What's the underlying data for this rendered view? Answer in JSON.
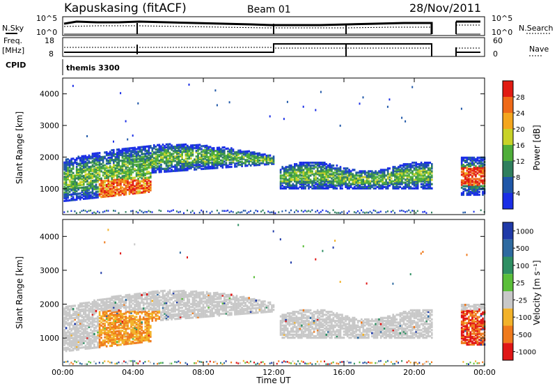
{
  "header": {
    "station": "Kapuskasing (fitACF)",
    "beam": "Beam 01",
    "date": "28/Nov/2011"
  },
  "top_panels": {
    "nsky_label": "N.Sky",
    "nsearch_label": "N.Search",
    "noise_ticks_left": [
      "10^5",
      "10^0"
    ],
    "noise_ticks_right": [
      "10^5",
      "10^0"
    ],
    "freq_label_1": "Freq.",
    "freq_label_2": "[MHz]",
    "freq_ticks": [
      "18",
      "8"
    ],
    "nave_label": "Nave",
    "nave_ticks": [
      "60",
      "0"
    ],
    "cpid_label": "CPID",
    "cpid_value": "themis 3300"
  },
  "axes": {
    "x_ticks": [
      "00:00",
      "04:00",
      "08:00",
      "12:00",
      "16:00",
      "20:00",
      "00:00"
    ],
    "x_label": "Time UT",
    "y_label": "Slant Range [km]",
    "y_ticks": [
      "1000",
      "2000",
      "3000",
      "4000"
    ]
  },
  "chart_data": [
    {
      "type": "heatmap",
      "name": "power",
      "title": "",
      "xlabel": "Time UT",
      "ylabel": "Slant Range [km]",
      "x_range_hours": [
        0,
        24
      ],
      "y_range_km": [
        180,
        4500
      ],
      "colorbar_label": "Power [dB]",
      "colorbar_ticks": [
        "4",
        "8",
        "12",
        "16",
        "20",
        "24",
        "28"
      ],
      "colorbar_colors": [
        "#1a2ee6",
        "#1f57a8",
        "#2f7f5e",
        "#4fae3a",
        "#c8d228",
        "#f4a61e",
        "#ef6a18",
        "#e11b12"
      ],
      "data_gap_hours": [
        21.0,
        22.6
      ],
      "regions_note_excluded": true
    },
    {
      "type": "heatmap",
      "name": "velocity",
      "title": "",
      "xlabel": "Time UT",
      "ylabel": "Slant Range [km]",
      "x_range_hours": [
        0,
        24
      ],
      "y_range_km": [
        180,
        4500
      ],
      "colorbar_label": "Velocity [m s⁻¹]",
      "colorbar_ticks": [
        "1000",
        "500",
        "100",
        "25",
        "-25",
        "-100",
        "-500",
        "-1000"
      ],
      "colorbar_colors": [
        "#1f3aa8",
        "#2e6aa0",
        "#2f8f63",
        "#5bbf3a",
        "#c8c8c8",
        "#f2b22a",
        "#ef7a1c",
        "#e01616"
      ],
      "data_gap_hours": [
        21.0,
        22.6
      ]
    }
  ]
}
